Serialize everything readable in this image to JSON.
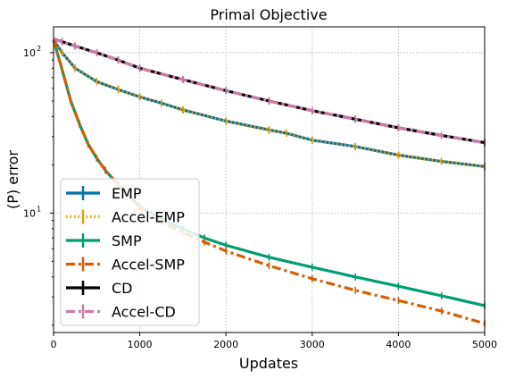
{
  "chart_data": {
    "type": "line",
    "title": "Primal Objective",
    "xlabel": "Updates",
    "ylabel": "(P) error",
    "xlim": [
      0,
      5000
    ],
    "ylim": [
      1.8,
      145
    ],
    "yscale": "log",
    "grid": true,
    "legend_position": "lower-left",
    "x_ticks": [
      {
        "value": 0,
        "label": "0"
      },
      {
        "value": 1000,
        "label": "1000"
      },
      {
        "value": 2000,
        "label": "2000"
      },
      {
        "value": 3000,
        "label": "3000"
      },
      {
        "value": 4000,
        "label": "4000"
      },
      {
        "value": 5000,
        "label": "5000"
      }
    ],
    "y_ticks": [
      {
        "value": 10,
        "base": "10",
        "exp": "1"
      },
      {
        "value": 100,
        "base": "10",
        "exp": "2"
      }
    ],
    "series": [
      {
        "name": "EMP",
        "color": "#0072b2",
        "style": "solid",
        "x": [
          0,
          100,
          250,
          500,
          750,
          1000,
          1250,
          1500,
          2000,
          2500,
          2700,
          3000,
          3500,
          4000,
          4500,
          5000
        ],
        "y": [
          120,
          100,
          80,
          66,
          59,
          53,
          48.5,
          44,
          37.5,
          33,
          31.5,
          28.5,
          26,
          23,
          21,
          19.5
        ]
      },
      {
        "name": "Accel-EMP",
        "color": "#e69f00",
        "style": "dotted",
        "x": [
          0,
          100,
          250,
          500,
          750,
          1000,
          1250,
          1500,
          2000,
          2500,
          2700,
          3000,
          3500,
          4000,
          4500,
          5000
        ],
        "y": [
          120,
          100,
          80,
          66,
          59,
          53,
          48.5,
          44,
          37.5,
          33,
          31.5,
          28.5,
          26,
          23,
          21,
          19.5
        ]
      },
      {
        "name": "SMP",
        "color": "#009e73",
        "style": "solid",
        "x": [
          0,
          100,
          200,
          300,
          400,
          500,
          600,
          750,
          1000,
          1250,
          1500,
          1750,
          2000,
          2500,
          3000,
          3500,
          4000,
          4500,
          5000
        ],
        "y": [
          120,
          78,
          50,
          36,
          27,
          22,
          18.5,
          15,
          11,
          9.2,
          8,
          7,
          6.3,
          5.3,
          4.6,
          4,
          3.5,
          3.05,
          2.65
        ]
      },
      {
        "name": "Accel-SMP",
        "color": "#d55e00",
        "style": "dashdot",
        "x": [
          0,
          100,
          200,
          300,
          400,
          500,
          600,
          750,
          1000,
          1250,
          1500,
          1750,
          2000,
          2500,
          3000,
          3500,
          4000,
          4500,
          5000
        ],
        "y": [
          120,
          78,
          50,
          36,
          27,
          22,
          18.5,
          15,
          10.8,
          8.8,
          7.6,
          6.6,
          5.8,
          4.7,
          3.9,
          3.3,
          2.85,
          2.45,
          2.05
        ]
      },
      {
        "name": "CD",
        "color": "#000000",
        "style": "solid",
        "x": [
          0,
          100,
          250,
          500,
          750,
          1000,
          1500,
          2000,
          2500,
          3000,
          3500,
          4000,
          4500,
          5000
        ],
        "y": [
          122,
          117,
          110,
          100,
          90,
          80,
          68,
          58,
          50,
          43.5,
          38.5,
          34,
          30.5,
          27.5
        ]
      },
      {
        "name": "Accel-CD",
        "color": "#cc79a7",
        "style": "dashdot",
        "x": [
          0,
          100,
          250,
          500,
          750,
          1000,
          1500,
          2000,
          2500,
          3000,
          3500,
          4000,
          4500,
          5000
        ],
        "y": [
          122,
          117,
          110,
          100,
          90,
          80,
          68,
          58,
          50,
          43.5,
          38.5,
          34,
          30.5,
          27.5
        ]
      }
    ]
  }
}
